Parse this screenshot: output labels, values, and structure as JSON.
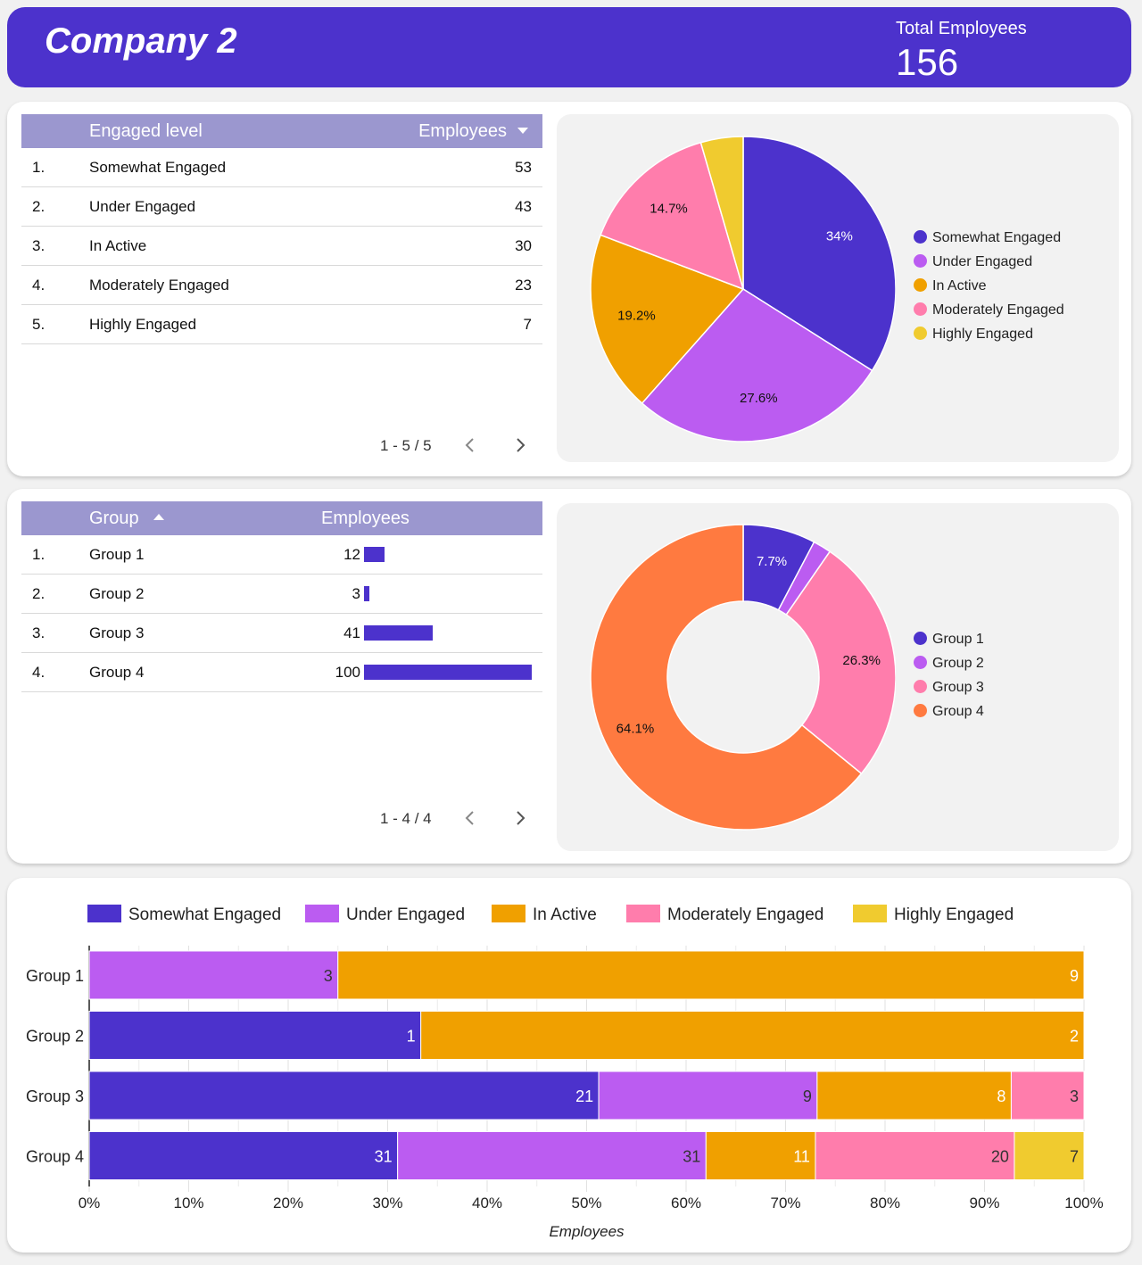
{
  "header": {
    "title": "Company 2",
    "total_label": "Total Employees",
    "total_value": "156"
  },
  "colors": {
    "header_bg": "#4c32cc",
    "somewhat": "#4c32cc",
    "under": "#bb5cf1",
    "inactive": "#f0a000",
    "moderately": "#ff7dac",
    "highly": "#f0cb2f",
    "group4": "#ff7a40"
  },
  "engagement_table": {
    "headers": {
      "level": "Engaged level",
      "employees": "Employees"
    },
    "rows": [
      {
        "idx": "1.",
        "label": "Somewhat Engaged",
        "value": "53"
      },
      {
        "idx": "2.",
        "label": "Under Engaged",
        "value": "43"
      },
      {
        "idx": "3.",
        "label": "In Active",
        "value": "30"
      },
      {
        "idx": "4.",
        "label": "Moderately Engaged",
        "value": "23"
      },
      {
        "idx": "5.",
        "label": "Highly Engaged",
        "value": "7"
      }
    ],
    "pager": "1 - 5 / 5"
  },
  "group_table": {
    "headers": {
      "group": "Group",
      "employees": "Employees"
    },
    "rows": [
      {
        "idx": "1.",
        "label": "Group 1",
        "value": "12",
        "num": 12
      },
      {
        "idx": "2.",
        "label": "Group 2",
        "value": "3",
        "num": 3
      },
      {
        "idx": "3.",
        "label": "Group 3",
        "value": "41",
        "num": 41
      },
      {
        "idx": "4.",
        "label": "Group 4",
        "value": "100",
        "num": 100
      }
    ],
    "pager": "1 - 4 / 4",
    "max_value": 100
  },
  "chart_data": [
    {
      "type": "pie",
      "categories": [
        "Somewhat Engaged",
        "Under Engaged",
        "In Active",
        "Moderately Engaged",
        "Highly Engaged"
      ],
      "values": [
        53,
        43,
        30,
        23,
        7
      ],
      "labels": [
        "34%",
        "27.6%",
        "19.2%",
        "14.7%",
        ""
      ],
      "legend": "right"
    },
    {
      "type": "pie",
      "donut": true,
      "categories": [
        "Group 1",
        "Group 2",
        "Group 3",
        "Group 4"
      ],
      "values": [
        12,
        3,
        41,
        100
      ],
      "labels": [
        "7.7%",
        "",
        "26.3%",
        "64.1%"
      ],
      "legend": "right"
    },
    {
      "type": "bar",
      "orientation": "horizontal",
      "stacked": "percent",
      "categories": [
        "Group 1",
        "Group 2",
        "Group 3",
        "Group 4"
      ],
      "series": [
        {
          "name": "Somewhat Engaged",
          "values": [
            0,
            1,
            21,
            31
          ]
        },
        {
          "name": "Under Engaged",
          "values": [
            3,
            0,
            9,
            31
          ]
        },
        {
          "name": "In Active",
          "values": [
            9,
            2,
            8,
            11
          ]
        },
        {
          "name": "Moderately Engaged",
          "values": [
            0,
            0,
            3,
            20
          ]
        },
        {
          "name": "Highly Engaged",
          "values": [
            0,
            0,
            0,
            7
          ]
        }
      ],
      "xticks": [
        "0%",
        "10%",
        "20%",
        "30%",
        "40%",
        "50%",
        "60%",
        "70%",
        "80%",
        "90%",
        "100%"
      ],
      "xlabel": "Employees",
      "legend": "top"
    }
  ]
}
